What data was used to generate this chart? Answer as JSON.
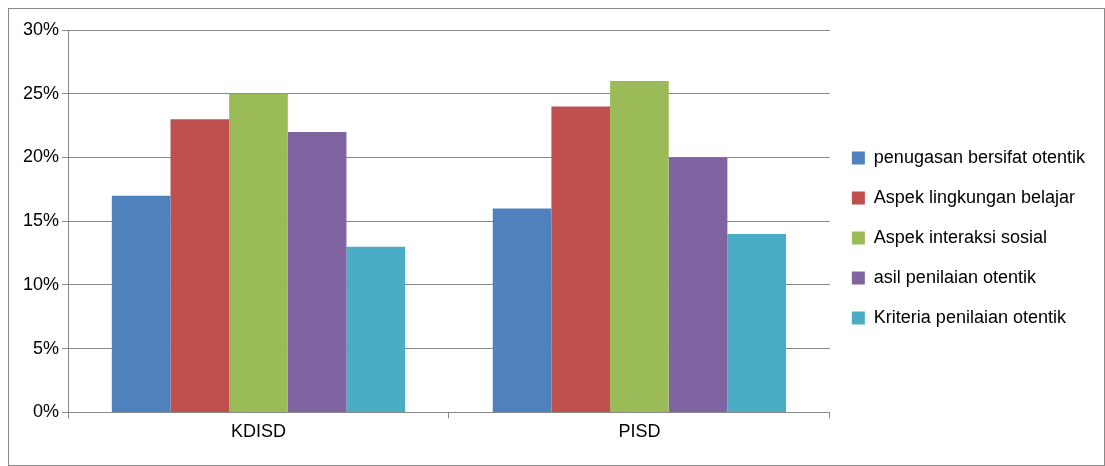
{
  "chart_data": {
    "type": "bar",
    "categories": [
      "KDISD",
      "PISD"
    ],
    "series": [
      {
        "name": "penugasan bersifat otentik",
        "color": "#4f81bd",
        "values": [
          17,
          16
        ]
      },
      {
        "name": "Aspek lingkungan belajar",
        "color": "#c0504d",
        "values": [
          23,
          24
        ]
      },
      {
        "name": "Aspek interaksi sosial",
        "color": "#9bbb59",
        "values": [
          25,
          26
        ]
      },
      {
        "name": "asil penilaian otentik",
        "color": "#8064a2",
        "values": [
          22,
          20
        ]
      },
      {
        "name": "Kriteria penilaian otentik",
        "color": "#4bacc6",
        "values": [
          13,
          14
        ]
      }
    ],
    "ylim": [
      0,
      30
    ],
    "yticks": [
      {
        "value": 0,
        "label": "0%"
      },
      {
        "value": 5,
        "label": "5%"
      },
      {
        "value": 10,
        "label": "10%"
      },
      {
        "value": 15,
        "label": "15%"
      },
      {
        "value": 20,
        "label": "20%"
      },
      {
        "value": 25,
        "label": "25%"
      },
      {
        "value": 30,
        "label": "30%"
      }
    ],
    "grid": "y",
    "legend": "right"
  }
}
